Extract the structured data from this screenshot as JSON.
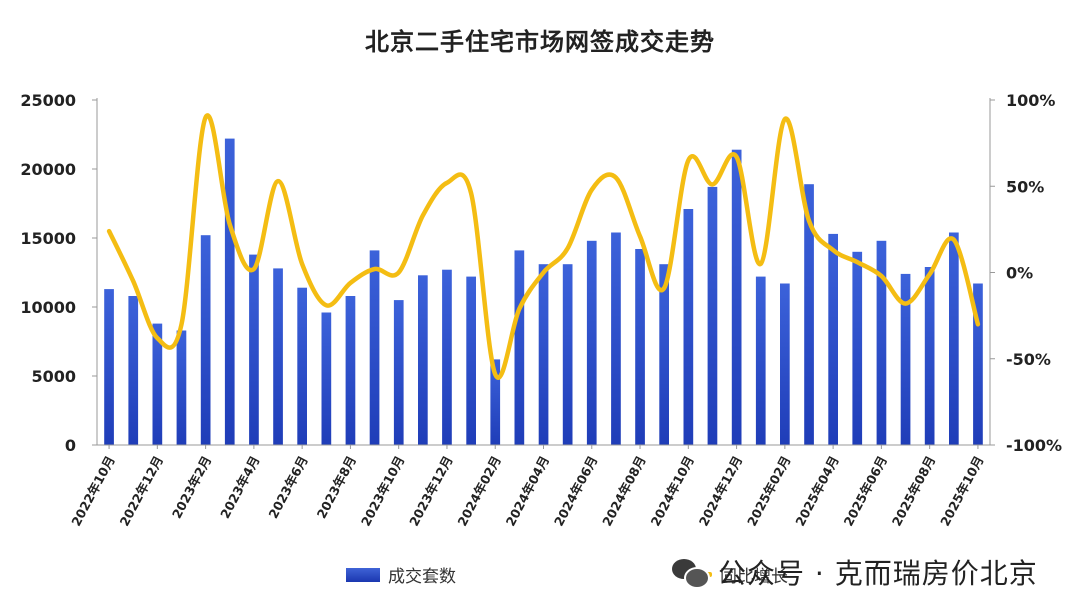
{
  "title": "北京二手住宅市场网签成交走势",
  "colors": {
    "bar": "#1f3db8",
    "line": "#f4bd13"
  },
  "legend": {
    "bar_label": "成交套数",
    "line_label": "同比增长"
  },
  "watermark": {
    "icon": "wechat-icon",
    "text": "公众号 · 克而瑞房价北京"
  },
  "chart_data": {
    "type": "bar",
    "title": "北京二手住宅市场网签成交走势",
    "x_tick_labels": [
      "2022年10月",
      "2022年12月",
      "2023年2月",
      "2023年4月",
      "2023年6月",
      "2023年8月",
      "2023年10月",
      "2023年12月",
      "2024年02月",
      "2024年04月",
      "2024年06月",
      "2024年08月",
      "2024年10月",
      "2024年12月",
      "2025年02月",
      "2025年04月",
      "2025年06月",
      "2025年08月",
      "2025年10月"
    ],
    "categories": [
      "2022-10",
      "2022-11",
      "2022-12",
      "2023-01",
      "2023-02",
      "2023-03",
      "2023-04",
      "2023-05",
      "2023-06",
      "2023-07",
      "2023-08",
      "2023-09",
      "2023-10",
      "2023-11",
      "2023-12",
      "2024-01",
      "2024-02",
      "2024-03",
      "2024-04",
      "2024-05",
      "2024-06",
      "2024-07",
      "2024-08",
      "2024-09",
      "2024-10",
      "2024-11",
      "2024-12",
      "2025-01",
      "2025-02",
      "2025-03",
      "2025-04",
      "2025-05",
      "2025-06",
      "2025-07",
      "2025-08",
      "2025-09",
      "2025-10"
    ],
    "y_left": {
      "ticks": [
        "0",
        "5000",
        "10000",
        "15000",
        "20000",
        "25000"
      ],
      "ylim": [
        0,
        25000
      ]
    },
    "y_right": {
      "ticks": [
        "-100%",
        "-50%",
        "0%",
        "50%",
        "100%"
      ],
      "ylim": [
        -100,
        100
      ]
    },
    "grid": false,
    "legend_position": "bottom",
    "series": [
      {
        "name": "成交套数",
        "type": "bar",
        "axis": "left",
        "values": [
          11300,
          10800,
          8800,
          8300,
          15200,
          22200,
          13800,
          12800,
          11400,
          9600,
          10800,
          14100,
          10500,
          12300,
          12700,
          12200,
          6200,
          14100,
          13100,
          13100,
          14800,
          15400,
          14200,
          13100,
          17100,
          18700,
          21400,
          12200,
          11700,
          18900,
          15300,
          14000,
          14800,
          12400,
          12900,
          15400,
          11700
        ]
      },
      {
        "name": "同比增长",
        "type": "line",
        "axis": "right",
        "values": [
          24,
          -5,
          -38,
          -30,
          90,
          28,
          2,
          53,
          5,
          -19,
          -6,
          2,
          0,
          33,
          52,
          46,
          -59,
          -21,
          0,
          14,
          48,
          55,
          21,
          -9,
          65,
          51,
          67,
          5,
          89,
          30,
          13,
          6,
          -2,
          -18,
          -1,
          19,
          -30
        ]
      }
    ]
  }
}
